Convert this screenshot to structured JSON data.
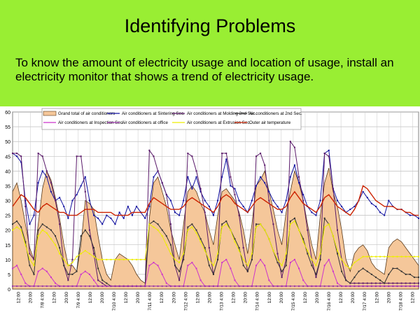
{
  "slide": {
    "title": "Identifying Problems",
    "body": "To know the amount of electricity usage and location of usage, install an electricity monitor that shows a trend of electricity usage."
  },
  "chart_data": {
    "type": "line",
    "ylim": [
      0,
      60
    ],
    "yticks": [
      0,
      5,
      10,
      15,
      20,
      25,
      30,
      35,
      40,
      45,
      50,
      55,
      60
    ],
    "grid": true,
    "legend_position": "top",
    "xticks": [
      "12:00",
      "20:00",
      "7/8 4:00",
      "12:00",
      "20:00",
      "7/9 4:00",
      "12:00",
      "20:00",
      "7/10 4:00",
      "12:00",
      "20:00",
      "7/11 4:00",
      "12:00",
      "20:00",
      "7/12 4:00",
      "12:00",
      "20:00",
      "7/13 4:00",
      "12:00",
      "20:00",
      "7/14 4:00",
      "12:00",
      "20:00",
      "7/15 4:00",
      "12:00",
      "20:00",
      "7/16 4:00",
      "12:00",
      "20:00",
      "7/17 4:00",
      "12:00",
      "20:00",
      "7/18 4:00",
      "12:00"
    ],
    "series": [
      {
        "name": "Grand total of air conditioners",
        "color": "#f5c79a",
        "style": "area",
        "values": [
          33,
          36,
          30,
          22,
          14,
          10,
          22,
          34,
          40,
          37,
          31,
          24,
          15,
          8,
          8,
          6,
          15,
          30,
          29,
          27,
          18,
          10,
          5,
          3,
          10,
          12,
          11,
          10,
          8,
          5,
          3,
          2,
          24,
          36,
          38,
          33,
          28,
          20,
          15,
          10,
          22,
          33,
          35,
          33,
          29,
          26,
          20,
          15,
          25,
          33,
          34,
          32,
          30,
          26,
          20,
          12,
          22,
          35,
          37,
          40,
          33,
          27,
          20,
          15,
          26,
          33,
          40,
          36,
          30,
          22,
          15,
          10,
          25,
          36,
          41,
          33,
          28,
          20,
          10,
          6,
          12,
          14,
          15,
          13,
          9,
          7,
          6,
          5,
          14,
          16,
          17,
          16,
          14,
          12,
          10,
          8
        ]
      },
      {
        "name": "Air conditioners at Sintering Sec.",
        "color": "#1010a0",
        "values": [
          46,
          45,
          43,
          30,
          22,
          25,
          36,
          40,
          38,
          33,
          30,
          31,
          28,
          24,
          30,
          32,
          35,
          38,
          30,
          25,
          24,
          22,
          25,
          24,
          22,
          26,
          24,
          28,
          25,
          28,
          26,
          24,
          28,
          38,
          40,
          36,
          32,
          30,
          26,
          25,
          30,
          38,
          34,
          38,
          33,
          30,
          28,
          25,
          30,
          38,
          44,
          35,
          34,
          30,
          28,
          26,
          30,
          35,
          38,
          36,
          33,
          30,
          28,
          26,
          30,
          38,
          42,
          36,
          32,
          28,
          26,
          25,
          30,
          46,
          47,
          34,
          30,
          28,
          26,
          27,
          28,
          30,
          33,
          31,
          29,
          28,
          26,
          25,
          30,
          28,
          27,
          27,
          26,
          25,
          25,
          24
        ]
      },
      {
        "name": "Air conditioners at Molding 2nd Sec.",
        "color": "#5a1a6a",
        "values": [
          46,
          46,
          45,
          28,
          12,
          10,
          46,
          45,
          40,
          36,
          30,
          22,
          8,
          3,
          10,
          45,
          45,
          33,
          20,
          12,
          3,
          2,
          1,
          1,
          1,
          1,
          1,
          1,
          1,
          1,
          1,
          1,
          47,
          45,
          40,
          36,
          32,
          22,
          8,
          3,
          12,
          46,
          45,
          40,
          34,
          26,
          14,
          5,
          10,
          46,
          46,
          38,
          32,
          25,
          14,
          6,
          10,
          45,
          46,
          42,
          30,
          22,
          12,
          4,
          10,
          50,
          48,
          38,
          30,
          20,
          10,
          4,
          10,
          46,
          45,
          34,
          20,
          10,
          3,
          2,
          2,
          2,
          2,
          2,
          2,
          2,
          2,
          2,
          2,
          2,
          2,
          2,
          2,
          2,
          2,
          2
        ]
      },
      {
        "name": "Air conditioners at 2nd Sec.",
        "color": "#333333",
        "values": [
          22,
          23,
          21,
          16,
          8,
          5,
          20,
          22,
          21,
          20,
          18,
          14,
          8,
          5,
          5,
          6,
          18,
          20,
          18,
          14,
          7,
          3,
          2,
          1,
          1,
          1,
          1,
          1,
          1,
          1,
          1,
          1,
          22,
          23,
          22,
          20,
          18,
          15,
          8,
          6,
          10,
          21,
          22,
          20,
          17,
          14,
          8,
          5,
          10,
          22,
          23,
          20,
          17,
          14,
          8,
          6,
          10,
          22,
          22,
          20,
          17,
          13,
          9,
          6,
          8,
          23,
          24,
          20,
          17,
          12,
          8,
          5,
          10,
          24,
          22,
          18,
          12,
          6,
          3,
          2,
          4,
          6,
          7,
          6,
          5,
          4,
          3,
          2,
          5,
          7,
          7,
          6,
          5,
          5,
          4,
          4
        ]
      },
      {
        "name": "Air conditioners at Inspection Sec.",
        "color": "#cc33cc",
        "values": [
          7,
          8,
          5,
          2,
          1,
          1,
          6,
          7,
          6,
          4,
          2,
          1,
          1,
          1,
          1,
          1,
          5,
          6,
          5,
          3,
          1,
          1,
          1,
          1,
          1,
          1,
          1,
          1,
          1,
          1,
          1,
          1,
          8,
          9,
          8,
          5,
          2,
          1,
          1,
          1,
          1,
          8,
          9,
          7,
          3,
          1,
          1,
          1,
          1,
          9,
          10,
          7,
          3,
          1,
          1,
          1,
          1,
          8,
          10,
          8,
          3,
          1,
          1,
          1,
          1,
          9,
          10,
          7,
          3,
          1,
          1,
          1,
          1,
          8,
          10,
          6,
          2,
          1,
          1,
          1,
          1,
          1,
          1,
          1,
          1,
          1,
          1,
          1,
          1,
          1,
          1,
          1,
          1,
          1,
          1,
          1
        ]
      },
      {
        "name": "Air conditioners at office",
        "color": "#9933aa",
        "values": [
          1,
          1,
          1,
          1,
          1,
          1,
          1,
          1,
          1,
          1,
          1,
          1,
          1,
          1,
          1,
          1,
          1,
          1,
          1,
          1,
          1,
          1,
          1,
          1,
          1,
          1,
          1,
          1,
          1,
          1,
          1,
          1,
          1,
          1,
          1,
          1,
          1,
          1,
          1,
          1,
          1,
          1,
          1,
          1,
          1,
          1,
          1,
          1,
          1,
          1,
          1,
          1,
          1,
          1,
          1,
          1,
          1,
          1,
          1,
          1,
          1,
          1,
          1,
          1,
          1,
          1,
          1,
          1,
          1,
          1,
          1,
          1,
          1,
          1,
          1,
          1,
          1,
          1,
          1,
          1,
          1,
          1,
          1,
          1,
          1,
          1,
          1,
          1,
          1,
          1,
          1,
          1,
          1,
          1,
          1,
          1
        ]
      },
      {
        "name": "Air conditioners at Extrusion Sec.",
        "color": "#eeee00",
        "values": [
          20,
          21,
          20,
          15,
          10,
          8,
          18,
          20,
          19,
          17,
          15,
          12,
          10,
          8,
          9,
          11,
          12,
          13,
          12,
          11,
          10,
          10,
          10,
          10,
          10,
          10,
          10,
          10,
          10,
          10,
          10,
          10,
          22,
          21,
          20,
          18,
          15,
          12,
          10,
          9,
          12,
          20,
          21,
          19,
          16,
          13,
          10,
          8,
          12,
          21,
          22,
          20,
          16,
          13,
          10,
          8,
          12,
          21,
          22,
          20,
          17,
          13,
          10,
          8,
          12,
          22,
          23,
          20,
          16,
          13,
          10,
          8,
          12,
          21,
          22,
          18,
          13,
          10,
          8,
          7,
          9,
          10,
          11,
          11,
          11,
          11,
          11,
          11,
          11,
          11,
          11,
          11,
          11,
          11,
          11,
          11
        ]
      },
      {
        "name": "Outer air temperature",
        "color": "#cc2200",
        "values": [
          28,
          30,
          32,
          31,
          29,
          27,
          26,
          28,
          29,
          28,
          27,
          26,
          26,
          25,
          25,
          25,
          26,
          27,
          27,
          27,
          26,
          26,
          26,
          26,
          25,
          25,
          25,
          25,
          26,
          26,
          26,
          26,
          29,
          31,
          30,
          29,
          28,
          27,
          27,
          27,
          28,
          30,
          31,
          30,
          29,
          28,
          27,
          26,
          28,
          31,
          32,
          31,
          29,
          28,
          27,
          26,
          28,
          30,
          31,
          30,
          29,
          28,
          27,
          27,
          28,
          31,
          33,
          31,
          29,
          28,
          27,
          26,
          28,
          31,
          32,
          30,
          28,
          27,
          26,
          25,
          27,
          30,
          35,
          34,
          32,
          30,
          29,
          28,
          28,
          28,
          27,
          27,
          26,
          26,
          25,
          25
        ]
      }
    ]
  }
}
